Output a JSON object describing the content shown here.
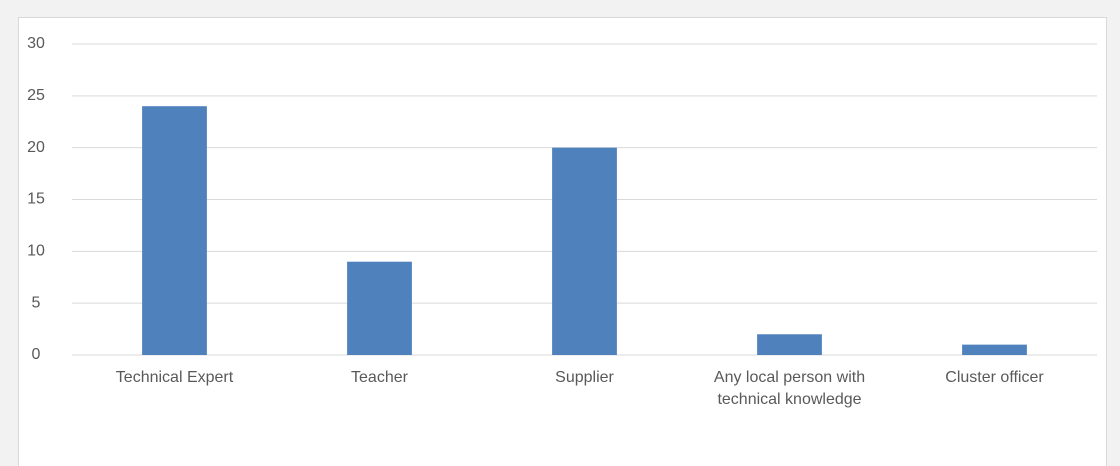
{
  "chart_data": {
    "type": "bar",
    "categories": [
      "Technical Expert",
      "Teacher",
      "Supplier",
      "Any local person with technical knowledge",
      "Cluster officer"
    ],
    "values": [
      24,
      9,
      20,
      2,
      1
    ],
    "color": "#4f81bd",
    "ylim": [
      0,
      30
    ],
    "yticks": [
      0,
      5,
      10,
      15,
      20,
      25,
      30
    ],
    "grid": true
  }
}
